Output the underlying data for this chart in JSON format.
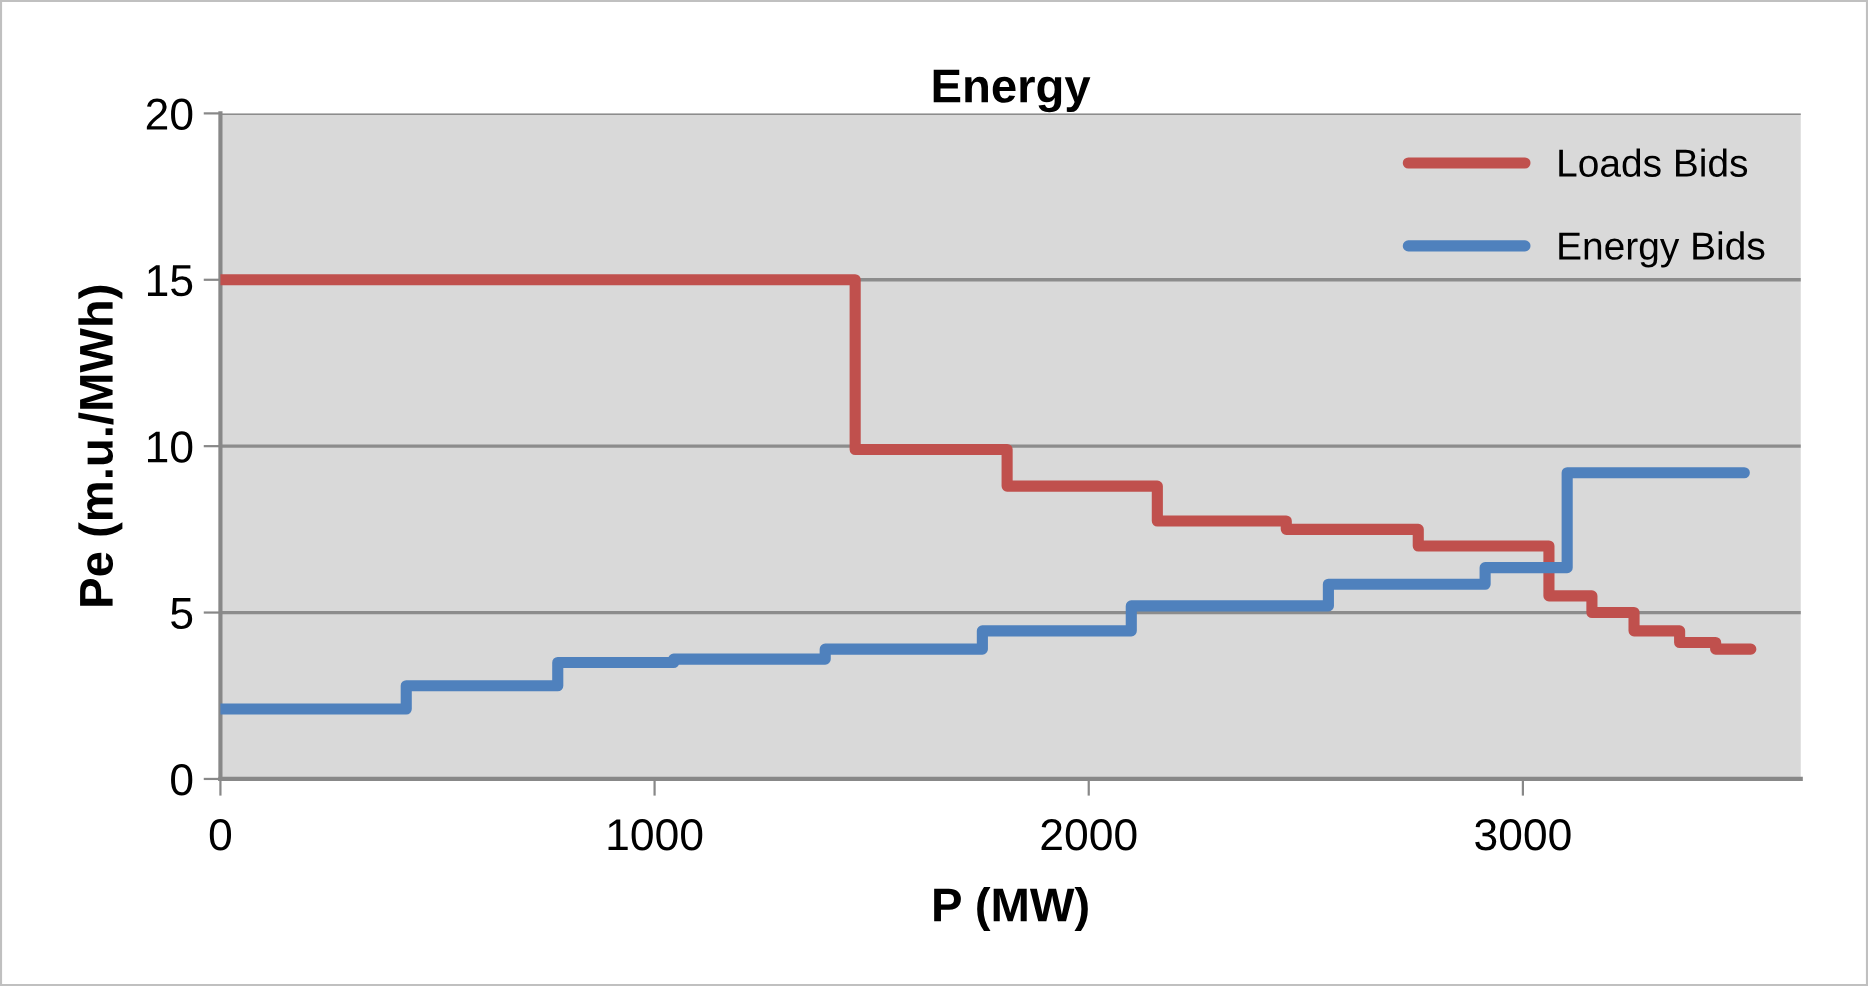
{
  "chart_data": {
    "type": "step",
    "title": "Energy",
    "xlabel": "P (MW)",
    "ylabel": "Pe (m.u./MWh)",
    "xlim": [
      0,
      3640
    ],
    "xticks": [
      0,
      1000,
      2000,
      3000
    ],
    "ylim": [
      0,
      20
    ],
    "yticks": [
      0,
      5,
      10,
      15,
      20
    ],
    "grid": "y",
    "legend": "top right",
    "series": [
      {
        "name": "Loads Bids",
        "color": "#c0504d",
        "x": [
          0,
          1462,
          1812,
          2158,
          2455,
          2759,
          3060,
          3159,
          3256,
          3361,
          3444,
          3525
        ],
        "values": [
          15,
          9.9,
          8.8,
          7.75,
          7.5,
          7.0,
          5.5,
          5.0,
          4.45,
          4.1,
          3.9,
          3.9
        ]
      },
      {
        "name": "Energy Bids",
        "color": "#4f81bd",
        "x": [
          0,
          428,
          777,
          1044,
          1393,
          1755,
          2098,
          2552,
          2913,
          3102,
          3510
        ],
        "values": [
          2.1,
          2.8,
          3.5,
          3.6,
          3.9,
          4.45,
          5.2,
          5.85,
          6.35,
          9.2,
          9.2
        ]
      }
    ]
  }
}
